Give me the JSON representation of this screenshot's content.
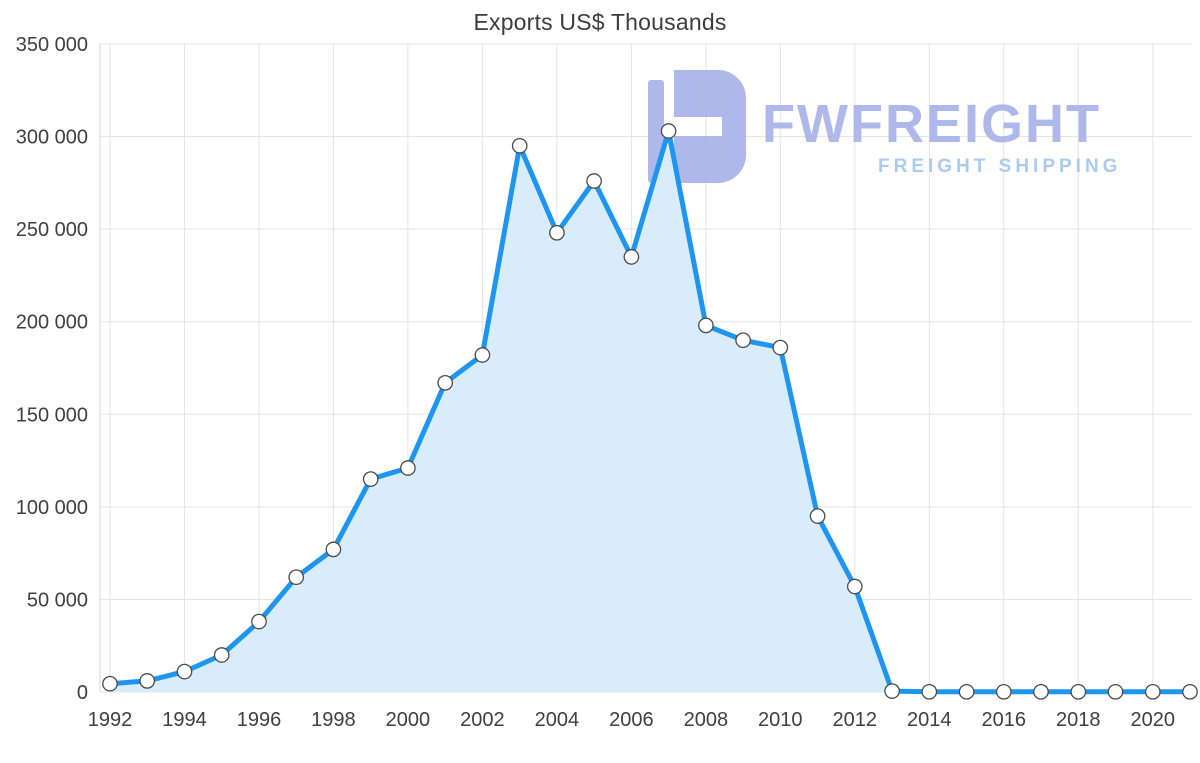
{
  "chart_data": {
    "type": "area",
    "title": "Exports US$ Thousands",
    "xlabel": "",
    "ylabel": "",
    "x": [
      1992,
      1993,
      1994,
      1995,
      1996,
      1997,
      1998,
      1999,
      2000,
      2001,
      2002,
      2003,
      2004,
      2005,
      2006,
      2007,
      2008,
      2009,
      2010,
      2011,
      2012,
      2013,
      2014,
      2015,
      2016,
      2017,
      2018,
      2019,
      2020,
      2021
    ],
    "series": [
      {
        "name": "Exports US$ Thousands",
        "values": [
          4500,
          6000,
          11000,
          20000,
          38000,
          62000,
          77000,
          115000,
          121000,
          167000,
          182000,
          295000,
          248000,
          276000,
          235000,
          303000,
          198000,
          190000,
          186000,
          95000,
          57000,
          500,
          100,
          100,
          100,
          100,
          100,
          100,
          100,
          100
        ]
      }
    ],
    "ylim": [
      0,
      350000
    ],
    "y_ticks": [
      0,
      50000,
      100000,
      150000,
      200000,
      250000,
      300000,
      350000
    ],
    "y_tick_labels": [
      "0",
      "50 000",
      "100 000",
      "150 000",
      "200 000",
      "250 000",
      "300 000",
      "350 000"
    ],
    "x_tick_labels": [
      "1992",
      "1994",
      "1996",
      "1998",
      "2000",
      "2002",
      "2004",
      "2006",
      "2008",
      "2010",
      "2012",
      "2014",
      "2016",
      "2018",
      "2020"
    ],
    "grid": true,
    "legend": "none",
    "colors": {
      "line": "#1e96f0",
      "area": "#d9ecfc",
      "marker_fill": "#ffffff",
      "marker_stroke": "#4a4a4a"
    }
  },
  "watermark": {
    "brand": "FWFREIGHT",
    "tagline": "FREIGHT SHIPPING",
    "brand_color": "#a6b1e9",
    "tagline_color": "#a3c6ee"
  }
}
